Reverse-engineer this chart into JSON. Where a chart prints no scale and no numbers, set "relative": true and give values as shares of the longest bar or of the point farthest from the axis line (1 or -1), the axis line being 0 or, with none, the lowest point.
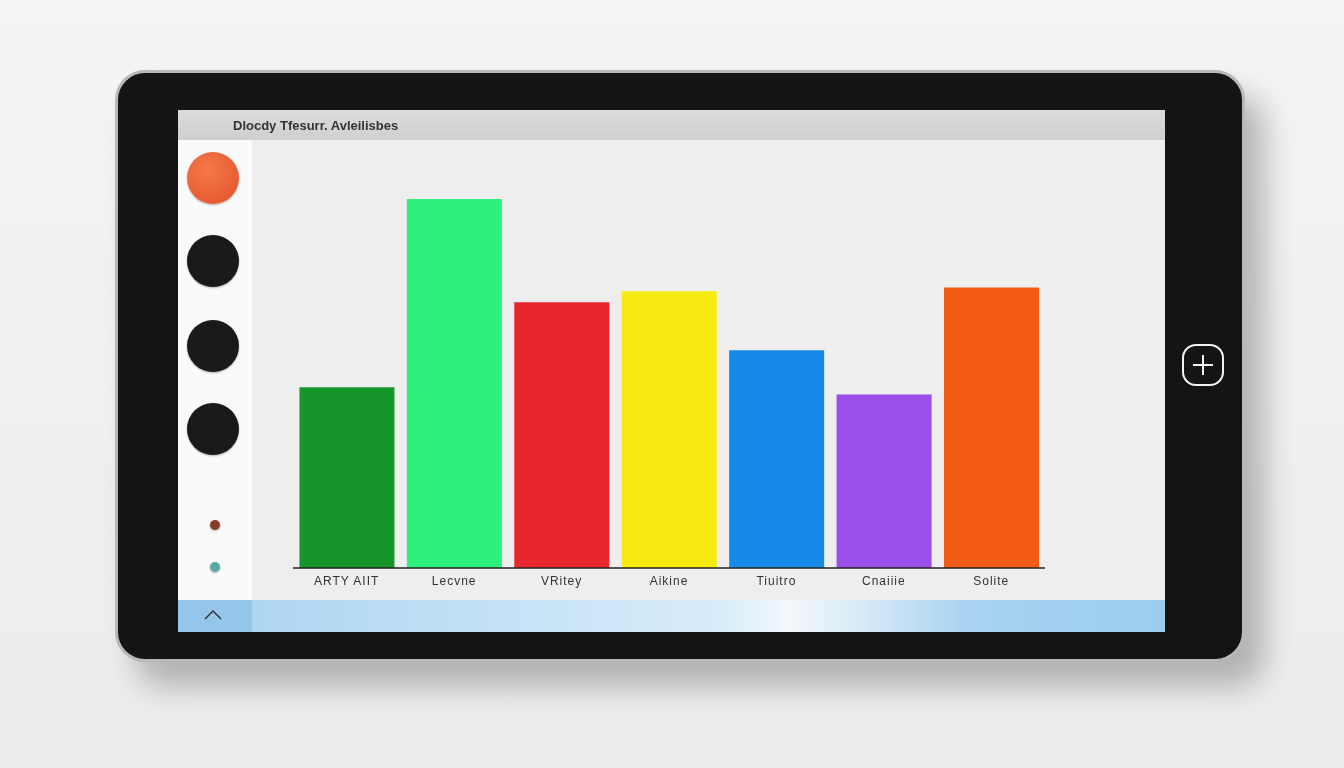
{
  "chart_data": {
    "type": "bar",
    "title": "Dlocdy Tfesurr. Avleilisbes",
    "categories": [
      "ARTY AIIT",
      "Lecvne",
      "VRitey",
      "Aikine",
      "Tiuitro",
      "Cnaiiie",
      "Solite"
    ],
    "values": [
      0.49,
      1,
      0.72,
      0.75,
      0.59,
      0.47,
      0.76
    ],
    "colors": [
      "#16962a",
      "#2ef07c",
      "#e8262e",
      "#f6ea10",
      "#168ae8",
      "#9a4eea",
      "#f25a16"
    ],
    "relative": true
  }
}
